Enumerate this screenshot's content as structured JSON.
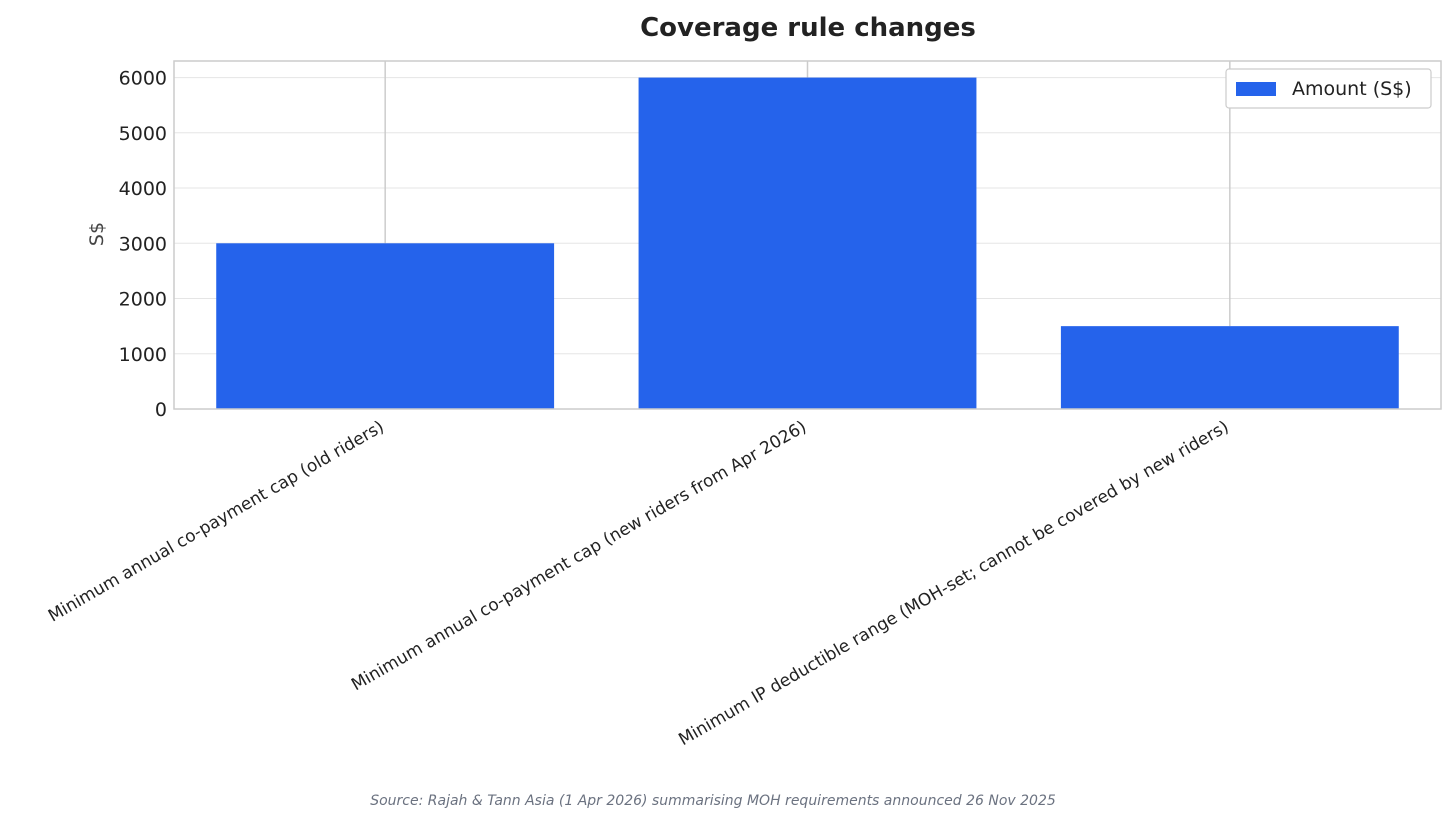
{
  "chart_data": {
    "type": "bar",
    "title": "Coverage rule changes",
    "xlabel": "",
    "ylabel": "S$",
    "categories": [
      "Minimum annual co-payment cap (old riders)",
      "Minimum annual co-payment cap (new riders from Apr 2026)",
      "Minimum IP deductible range (MOH-set; cannot be covered by new riders)"
    ],
    "series": [
      {
        "name": "Amount (S$)",
        "values": [
          3000,
          6000,
          1500
        ],
        "color": "#2563eb"
      }
    ],
    "ylim": [
      0,
      6300
    ],
    "yticks": [
      0,
      1000,
      2000,
      3000,
      4000,
      5000,
      6000
    ],
    "grid": true,
    "legend_position": "top-right",
    "colors": {
      "bar": "#2563eb",
      "grid": "#e5e5e5",
      "frame": "#cccccc",
      "text": "#222222",
      "source": "#6b7280"
    }
  },
  "footer": {
    "source": "Source: Rajah & Tann Asia (1 Apr 2026) summarising MOH requirements announced 26 Nov 2025"
  }
}
